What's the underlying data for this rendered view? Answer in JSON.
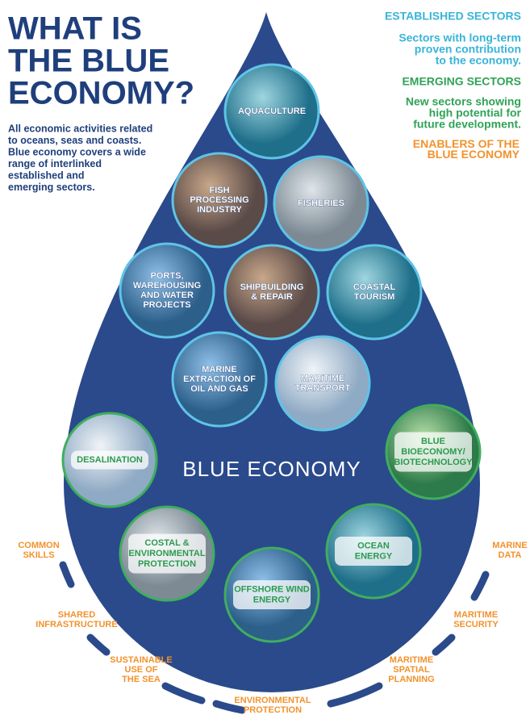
{
  "header": {
    "title": [
      "WHAT IS",
      "THE BLUE",
      "ECONOMY?"
    ],
    "intro": [
      "All economic activities related",
      "to oceans, seas and coasts.",
      "Blue economy covers a wide",
      "range of interlinked",
      "established and",
      "emerging sectors."
    ]
  },
  "legend": {
    "established": {
      "heading": "ESTABLISHED SECTORS",
      "text": [
        "Sectors with long-term",
        "proven contribution",
        "to the economy."
      ]
    },
    "emerging": {
      "heading": "EMERGING SECTORS",
      "text": [
        "New sectors showing",
        "high potential for",
        "future development."
      ]
    },
    "enablers": {
      "heading": [
        "ENABLERS OF THE",
        "BLUE ECONOMY"
      ]
    }
  },
  "center_label": "BLUE ECONOMY",
  "established_sectors": [
    {
      "label": [
        "AQUACULTURE"
      ]
    },
    {
      "label": [
        "FISH",
        "PROCESSING",
        "INDUSTRY"
      ]
    },
    {
      "label": [
        "FISHERIES"
      ]
    },
    {
      "label": [
        "PORTS,",
        "WAREHOUSING",
        "AND WATER",
        "PROJECTS"
      ]
    },
    {
      "label": [
        "SHIPBUILDING",
        "& REPAIR"
      ]
    },
    {
      "label": [
        "COASTAL",
        "TOURISM"
      ]
    },
    {
      "label": [
        "MARINE",
        "EXTRACTION OF",
        "OIL AND GAS"
      ]
    },
    {
      "label": [
        "MARITIME",
        "TRANSPORT"
      ]
    }
  ],
  "emerging_sectors": [
    {
      "label": [
        "DESALINATION"
      ]
    },
    {
      "label": [
        "BLUE",
        "BIOECONOMY/",
        "BIOTECHNOLOGY"
      ]
    },
    {
      "label": [
        "COSTAL &",
        "ENVIRONMENTAL",
        "PROTECTION"
      ]
    },
    {
      "label": [
        "OFFSHORE WIND",
        "ENERGY"
      ]
    },
    {
      "label": [
        "OCEAN",
        "ENERGY"
      ]
    }
  ],
  "enablers": [
    {
      "label": [
        "COMMON",
        "SKILLS"
      ]
    },
    {
      "label": [
        "SHARED",
        "INFRASTRUCTURE"
      ]
    },
    {
      "label": [
        "SUSTAINABLE",
        "USE OF",
        "THE SEA"
      ]
    },
    {
      "label": [
        "ENVIRONMENTAL",
        "PROTECTION"
      ]
    },
    {
      "label": [
        "MARITIME",
        "SPATIAL",
        "PLANNING"
      ]
    },
    {
      "label": [
        "MARITIME",
        "SECURITY"
      ]
    },
    {
      "label": [
        "MARINE",
        "DATA"
      ]
    }
  ]
}
